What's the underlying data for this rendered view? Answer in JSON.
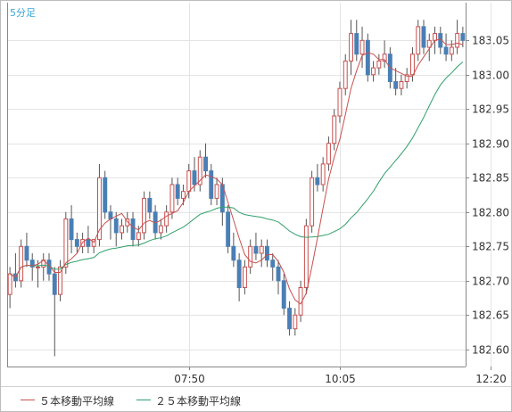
{
  "timeframe_label": "5分足",
  "colors": {
    "up": "#c8504f",
    "down": "#4a7fb5",
    "wick": "#555555",
    "ma5": "#c8504f",
    "ma25": "#2fa06a",
    "grid": "#e4e4e4",
    "axis": "#888888",
    "label": "#333333"
  },
  "chart_data": {
    "type": "candlestick",
    "title": "",
    "xlabel": "",
    "ylabel": "",
    "ylim": [
      182.575,
      183.105
    ],
    "y_ticks": [
      182.6,
      182.65,
      182.7,
      182.75,
      182.8,
      182.85,
      182.9,
      182.95,
      183.0,
      183.05
    ],
    "y_tick_labels": [
      "182.60",
      "182.65",
      "182.70",
      "182.75",
      "182.80",
      "182.85",
      "182.90",
      "182.95",
      "183.00",
      "183.05"
    ],
    "x_tick_labels": [
      "07:50",
      "10:05",
      "12:20"
    ],
    "x_tick_indices": [
      32,
      59,
      86
    ],
    "grid": true,
    "legend": [
      "５本移動平均線",
      "２５本移動平均線"
    ],
    "ohlc": [
      [
        182.68,
        182.72,
        182.66,
        182.71
      ],
      [
        182.71,
        182.74,
        182.69,
        182.7
      ],
      [
        182.7,
        182.76,
        182.69,
        182.75
      ],
      [
        182.75,
        182.77,
        182.72,
        182.73
      ],
      [
        182.73,
        182.74,
        182.7,
        182.72
      ],
      [
        182.72,
        182.73,
        182.69,
        182.72
      ],
      [
        182.72,
        182.74,
        182.7,
        182.73
      ],
      [
        182.73,
        182.74,
        182.7,
        182.71
      ],
      [
        182.71,
        182.72,
        182.59,
        182.68
      ],
      [
        182.68,
        182.73,
        182.67,
        182.72
      ],
      [
        182.72,
        182.8,
        182.71,
        182.79
      ],
      [
        182.79,
        182.81,
        182.74,
        182.76
      ],
      [
        182.76,
        182.77,
        182.74,
        182.75
      ],
      [
        182.75,
        182.77,
        182.74,
        182.76
      ],
      [
        182.76,
        182.78,
        182.74,
        182.75
      ],
      [
        182.75,
        182.76,
        182.74,
        182.76
      ],
      [
        182.76,
        182.87,
        182.75,
        182.85
      ],
      [
        182.85,
        182.86,
        182.79,
        182.8
      ],
      [
        182.8,
        182.81,
        182.76,
        182.79
      ],
      [
        182.79,
        182.8,
        182.75,
        182.77
      ],
      [
        182.77,
        182.79,
        182.76,
        182.78
      ],
      [
        182.78,
        182.8,
        182.77,
        182.79
      ],
      [
        182.79,
        182.8,
        182.75,
        182.76
      ],
      [
        182.76,
        182.78,
        182.75,
        182.77
      ],
      [
        182.77,
        182.83,
        182.76,
        182.82
      ],
      [
        182.82,
        182.83,
        182.79,
        182.8
      ],
      [
        182.8,
        182.81,
        182.76,
        182.77
      ],
      [
        182.77,
        182.79,
        182.76,
        182.78
      ],
      [
        182.78,
        182.81,
        182.77,
        182.8
      ],
      [
        182.8,
        182.85,
        182.79,
        182.84
      ],
      [
        182.84,
        182.85,
        182.81,
        182.82
      ],
      [
        182.82,
        182.84,
        182.81,
        182.83
      ],
      [
        182.83,
        182.87,
        182.82,
        182.86
      ],
      [
        182.86,
        182.88,
        182.83,
        182.84
      ],
      [
        182.84,
        182.89,
        182.83,
        182.88
      ],
      [
        182.88,
        182.9,
        182.85,
        182.86
      ],
      [
        182.86,
        182.87,
        182.81,
        182.82
      ],
      [
        182.82,
        182.85,
        182.81,
        182.84
      ],
      [
        182.84,
        182.85,
        182.78,
        182.8
      ],
      [
        182.8,
        182.81,
        182.74,
        182.75
      ],
      [
        182.75,
        182.77,
        182.72,
        182.73
      ],
      [
        182.73,
        182.74,
        182.67,
        182.69
      ],
      [
        182.69,
        182.73,
        182.68,
        182.72
      ],
      [
        182.72,
        182.76,
        182.71,
        182.75
      ],
      [
        182.75,
        182.77,
        182.73,
        182.74
      ],
      [
        182.74,
        182.76,
        182.72,
        182.75
      ],
      [
        182.75,
        182.76,
        182.72,
        182.73
      ],
      [
        182.73,
        182.74,
        182.7,
        182.72
      ],
      [
        182.72,
        182.73,
        182.68,
        182.7
      ],
      [
        182.7,
        182.71,
        182.65,
        182.66
      ],
      [
        182.66,
        182.67,
        182.62,
        182.63
      ],
      [
        182.63,
        182.66,
        182.62,
        182.65
      ],
      [
        182.65,
        182.7,
        182.64,
        182.69
      ],
      [
        182.69,
        182.79,
        182.68,
        182.78
      ],
      [
        182.78,
        182.86,
        182.77,
        182.85
      ],
      [
        182.85,
        182.87,
        182.83,
        182.84
      ],
      [
        182.84,
        182.88,
        182.83,
        182.87
      ],
      [
        182.87,
        182.91,
        182.86,
        182.9
      ],
      [
        182.9,
        182.95,
        182.89,
        182.94
      ],
      [
        182.94,
        182.99,
        182.93,
        182.98
      ],
      [
        182.98,
        183.03,
        182.97,
        183.02
      ],
      [
        183.02,
        183.08,
        183.0,
        183.06
      ],
      [
        183.06,
        183.08,
        183.02,
        183.03
      ],
      [
        183.03,
        183.07,
        183.01,
        183.05
      ],
      [
        183.05,
        183.06,
        182.99,
        183.0
      ],
      [
        183.0,
        183.02,
        182.99,
        183.01
      ],
      [
        183.01,
        183.03,
        183.0,
        183.02
      ],
      [
        183.02,
        183.05,
        183.01,
        183.03
      ],
      [
        183.03,
        183.04,
        182.98,
        182.99
      ],
      [
        182.99,
        183.01,
        182.97,
        182.98
      ],
      [
        182.98,
        183.0,
        182.97,
        182.99
      ],
      [
        182.99,
        183.01,
        182.98,
        183.0
      ],
      [
        183.0,
        183.04,
        182.99,
        183.03
      ],
      [
        183.03,
        183.08,
        183.02,
        183.07
      ],
      [
        183.07,
        183.08,
        183.03,
        183.04
      ],
      [
        183.04,
        183.06,
        183.02,
        183.05
      ],
      [
        183.05,
        183.07,
        183.03,
        183.06
      ],
      [
        183.06,
        183.07,
        183.03,
        183.04
      ],
      [
        183.04,
        183.06,
        183.02,
        183.03
      ],
      [
        183.03,
        183.05,
        183.02,
        183.04
      ],
      [
        183.04,
        183.08,
        183.03,
        183.06
      ],
      [
        183.06,
        183.07,
        183.04,
        183.05
      ]
    ]
  }
}
